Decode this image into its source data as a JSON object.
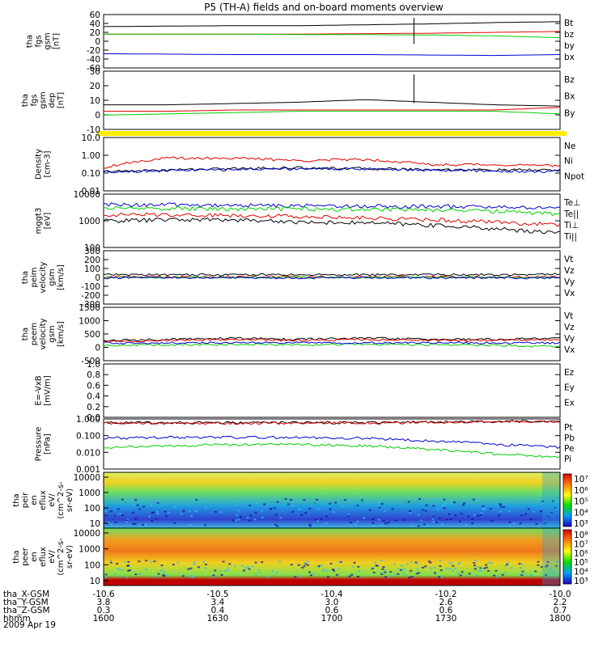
{
  "title": "P5 (TH-A) fields and on-board moments overview",
  "date": "2009 Apr 19",
  "colors": {
    "black": "#000000",
    "red": "#e00000",
    "green": "#00d000",
    "blue": "#0000d0",
    "yellow": "#ffee00"
  },
  "bottom_axis": {
    "rows": [
      {
        "label": "tha_X-GSM",
        "values": [
          "-10.6",
          "-10.5",
          "-10.4",
          "-10.2",
          "-10.0"
        ]
      },
      {
        "label": "tha_Y-GSM",
        "values": [
          "3.8",
          "3.4",
          "3.0",
          "2.6",
          "2.2"
        ]
      },
      {
        "label": "tha_Z-GSM",
        "values": [
          "0.3",
          "0.4",
          "0.6",
          "0.6",
          "0.7"
        ]
      },
      {
        "label": "hhmm",
        "values": [
          "1600",
          "1630",
          "1700",
          "1730",
          "1800"
        ]
      }
    ]
  },
  "chart_data": [
    {
      "type": "line",
      "ylabel": [
        "tha",
        "fgs",
        "gsm",
        "[nT]"
      ],
      "yticks": [
        "60",
        "40",
        "20",
        "0",
        "-20",
        "-40",
        "-60"
      ],
      "ylim": [
        -60,
        60
      ],
      "series": [
        {
          "name": "Bt",
          "color": "black",
          "values": [
            33,
            34,
            35,
            35,
            37,
            39,
            42,
            44
          ]
        },
        {
          "name": "bz",
          "color": "red",
          "values": [
            16,
            16,
            16,
            16,
            17,
            18,
            20,
            22
          ]
        },
        {
          "name": "by",
          "color": "green",
          "values": [
            16,
            16,
            16,
            15,
            15,
            14,
            12,
            8
          ]
        },
        {
          "name": "bx",
          "color": "blue",
          "values": [
            -28,
            -29,
            -30,
            -30,
            -30,
            -31,
            -32,
            -30
          ]
        }
      ]
    },
    {
      "type": "line",
      "ylabel": [
        "tha",
        "fgs",
        "gsm",
        "dep"
      ],
      "ylabel_unit": "[nT]",
      "yticks": [
        "30",
        "20",
        "10",
        "0",
        "-10"
      ],
      "ylim": [
        -15,
        30
      ],
      "series": [
        {
          "name": "Bz",
          "color": "black",
          "values": [
            4,
            4,
            5,
            6,
            8,
            6,
            4,
            3
          ]
        },
        {
          "name": "Bx",
          "color": "red",
          "values": [
            -1,
            -1,
            0,
            0,
            0,
            0,
            0,
            2
          ]
        },
        {
          "name": "By",
          "color": "green",
          "values": [
            -4,
            -3,
            -2,
            -1,
            -1,
            -1,
            -1,
            -3
          ]
        }
      ]
    },
    {
      "type": "line",
      "ylabel": [
        "Density",
        "[cm-3]"
      ],
      "yticks": [
        "10.0",
        "1.00",
        "0.10",
        "0.01"
      ],
      "ylim": [
        0.01,
        10
      ],
      "log": true,
      "series": [
        {
          "name": "Ne",
          "color": "red",
          "values": [
            0.2,
            0.7,
            0.7,
            0.5,
            0.6,
            0.3,
            0.3,
            0.25
          ]
        },
        {
          "name": "Ni",
          "color": "black",
          "values": [
            0.12,
            0.15,
            0.18,
            0.2,
            0.18,
            0.16,
            0.15,
            0.15
          ]
        },
        {
          "name": "Npot",
          "color": "blue",
          "values": [
            0.12,
            0.14,
            0.16,
            0.18,
            0.17,
            0.15,
            0.13,
            0.12
          ]
        }
      ]
    },
    {
      "type": "line",
      "ylabel": [
        "mggt3",
        "[eV]"
      ],
      "yticks": [
        "10000",
        "1000",
        "100"
      ],
      "ylim": [
        100,
        10000
      ],
      "log": true,
      "series": [
        {
          "name": "Te⊥",
          "color": "red",
          "values": [
            1700,
            1700,
            1600,
            1500,
            1300,
            1100,
            900,
            700
          ]
        },
        {
          "name": "Te||",
          "color": "black",
          "values": [
            1000,
            1100,
            1100,
            900,
            850,
            700,
            500,
            350
          ]
        },
        {
          "name": "Ti⊥",
          "color": "blue",
          "values": [
            4000,
            4000,
            3800,
            3700,
            3600,
            3500,
            3300,
            3000
          ]
        },
        {
          "name": "Ti||",
          "color": "green",
          "values": [
            3000,
            2900,
            2800,
            2800,
            2700,
            2600,
            2300,
            1800
          ]
        }
      ]
    },
    {
      "type": "line",
      "ylabel": [
        "tha",
        "peim",
        "velocity",
        "gsm",
        "[km/s]"
      ],
      "yticks": [
        "300",
        "200",
        "100",
        "0",
        "-100",
        "-200",
        "-300"
      ],
      "ylim": [
        -300,
        300
      ],
      "series": [
        {
          "name": "Vt",
          "color": "black",
          "values": [
            30,
            30,
            30,
            30,
            30,
            30,
            30,
            40
          ]
        },
        {
          "name": "Vz",
          "color": "red",
          "values": [
            5,
            5,
            5,
            5,
            5,
            5,
            5,
            5
          ]
        },
        {
          "name": "Vy",
          "color": "green",
          "values": [
            0,
            0,
            0,
            0,
            0,
            0,
            0,
            0
          ]
        },
        {
          "name": "Vx",
          "color": "blue",
          "values": [
            -5,
            -5,
            -5,
            -5,
            -5,
            -5,
            -5,
            -5
          ]
        }
      ]
    },
    {
      "type": "line",
      "ylabel": [
        "tha",
        "peem",
        "velocity",
        "gsm",
        "[km/s]"
      ],
      "yticks": [
        "1500",
        "1000",
        "500",
        "0",
        "-500"
      ],
      "ylim": [
        -750,
        1500
      ],
      "series": [
        {
          "name": "Vt",
          "color": "black",
          "values": [
            100,
            150,
            200,
            150,
            200,
            150,
            150,
            200
          ]
        },
        {
          "name": "Vz",
          "color": "red",
          "values": [
            50,
            100,
            150,
            100,
            150,
            100,
            100,
            150
          ]
        },
        {
          "name": "Vy",
          "color": "green",
          "values": [
            -100,
            -80,
            -60,
            -80,
            -60,
            -80,
            -100,
            -150
          ]
        },
        {
          "name": "Vx",
          "color": "blue",
          "values": [
            0,
            0,
            0,
            0,
            0,
            0,
            0,
            0
          ]
        }
      ]
    },
    {
      "type": "line",
      "ylabel": [
        "E=-VxB",
        "[mV/m]"
      ],
      "yticks": [
        "1.0",
        "0.8",
        "0.6",
        "0.4",
        "0.2",
        "0.0"
      ],
      "ylim": [
        0,
        1
      ],
      "series": [
        {
          "name": "Ez",
          "color": "red",
          "values": []
        },
        {
          "name": "Ey",
          "color": "green",
          "values": []
        },
        {
          "name": "Ex",
          "color": "blue",
          "values": []
        }
      ]
    },
    {
      "type": "line",
      "ylabel": [
        "Pressure",
        "[nPa]"
      ],
      "yticks": [
        "1.000",
        "0.100",
        "0.010",
        "0.001"
      ],
      "ylim": [
        0.001,
        1
      ],
      "log": true,
      "series": [
        {
          "name": "Pt",
          "color": "black",
          "values": [
            0.6,
            0.6,
            0.6,
            0.6,
            0.6,
            0.65,
            0.7,
            0.75
          ]
        },
        {
          "name": "Pb",
          "color": "red",
          "values": [
            0.55,
            0.55,
            0.56,
            0.57,
            0.58,
            0.62,
            0.68,
            0.72
          ]
        },
        {
          "name": "Pe",
          "color": "green",
          "values": [
            0.02,
            0.025,
            0.03,
            0.03,
            0.025,
            0.015,
            0.008,
            0.005
          ]
        },
        {
          "name": "Pi",
          "color": "blue",
          "values": [
            0.07,
            0.08,
            0.08,
            0.08,
            0.07,
            0.05,
            0.03,
            0.02
          ]
        }
      ]
    },
    {
      "type": "heatmap",
      "ylabel": [
        "tha",
        "peir",
        "en",
        "eflux",
        "eV/",
        "(cm^2-s-",
        "sr-eV)"
      ],
      "yticks": [
        "10000",
        "1000",
        "100",
        "10"
      ],
      "colorbar": [
        "10⁷",
        "10⁶",
        "10⁵",
        "10⁴",
        "10³"
      ]
    },
    {
      "type": "heatmap",
      "ylabel": [
        "tha",
        "peer",
        "en",
        "eflux",
        "eV/",
        "(cm^2-s-",
        "sr-eV)"
      ],
      "yticks": [
        "10000",
        "1000",
        "100",
        "10"
      ],
      "colorbar": [
        "10⁸",
        "10⁷",
        "10⁶",
        "10⁵",
        "10⁴",
        "10³"
      ]
    }
  ]
}
